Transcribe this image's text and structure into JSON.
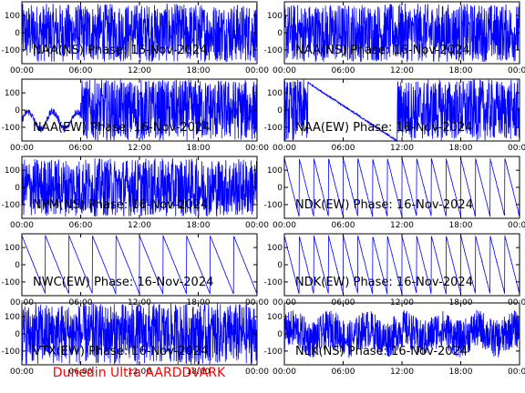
{
  "colors": {
    "trace": "#0000ff",
    "axes": "#000000",
    "footer": "#ff0000",
    "background": "#ffffff"
  },
  "footer": {
    "text": "Dunedin Ultra AARDDVARK"
  },
  "chart_data": [
    {
      "type": "line",
      "title": "NAA(NS) Phase: 16-Nov-2024",
      "x_ticks": [
        "00:00",
        "06:00",
        "12:00",
        "18:00",
        "00:00"
      ],
      "y_ticks": [
        "100",
        "0",
        "-100"
      ],
      "ylim": [
        -180,
        180
      ],
      "grid": false,
      "pattern": "dense_noise"
    },
    {
      "type": "line",
      "title": "NAA(NS) Phase: 16-Nov-2024",
      "x_ticks": [
        "00:00",
        "06:00",
        "12:00",
        "18:00",
        "00:00"
      ],
      "y_ticks": [
        "100",
        "0",
        "-100"
      ],
      "ylim": [
        -180,
        180
      ],
      "grid": false,
      "pattern": "dense_noise"
    },
    {
      "type": "line",
      "title": "NAA(EW) Phase: 16-Nov-2024",
      "x_ticks": [
        "00:00",
        "06:00",
        "12:00",
        "18:00",
        "00:00"
      ],
      "y_ticks": [
        "100",
        "0",
        "-100"
      ],
      "ylim": [
        -180,
        180
      ],
      "grid": false,
      "pattern": "wander_then_solid"
    },
    {
      "type": "line",
      "title": "NAA(EW) Phase: 16-Nov-2024",
      "x_ticks": [
        "00:00",
        "06:00",
        "12:00",
        "18:00",
        "00:00"
      ],
      "y_ticks": [
        "100",
        "0",
        "-100"
      ],
      "ylim": [
        -180,
        180
      ],
      "grid": false,
      "pattern": "solid_with_ramp"
    },
    {
      "type": "line",
      "title": "NPM(NS) Phase: 16-Nov-2024",
      "x_ticks": [
        "00:00",
        "06:00",
        "12:00",
        "18:00",
        "00:00"
      ],
      "y_ticks": [
        "100",
        "0",
        "-100"
      ],
      "ylim": [
        -180,
        180
      ],
      "grid": false,
      "pattern": "dense_noise"
    },
    {
      "type": "line",
      "title": "NDK(EW) Phase: 16-Nov-2024",
      "x_ticks": [
        "00:00",
        "06:00",
        "12:00",
        "18:00",
        "00:00"
      ],
      "y_ticks": [
        "100",
        "0",
        "-100"
      ],
      "ylim": [
        -180,
        180
      ],
      "grid": false,
      "pattern": "sawtooth_fast"
    },
    {
      "type": "line",
      "title": "NWC(EW) Phase: 16-Nov-2024",
      "x_ticks": [
        "00:00",
        "06:00",
        "12:00",
        "18:00",
        "00:00"
      ],
      "y_ticks": [
        "100",
        "0",
        "-100"
      ],
      "ylim": [
        -180,
        180
      ],
      "grid": false,
      "pattern": "sawtooth_slow"
    },
    {
      "type": "line",
      "title": "NDK(EW) Phase: 16-Nov-2024",
      "x_ticks": [
        "00:00",
        "06:00",
        "12:00",
        "18:00",
        "00:00"
      ],
      "y_ticks": [
        "100",
        "0",
        "-100"
      ],
      "ylim": [
        -180,
        180
      ],
      "grid": false,
      "pattern": "sawtooth_fast"
    },
    {
      "type": "line",
      "title": "VTX(EW) Phase: 16-Nov-2024",
      "x_ticks": [
        "00:00",
        "06:00",
        "12:00",
        "18:00",
        "00:00"
      ],
      "y_ticks": [
        "100",
        "0",
        "-100"
      ],
      "ylim": [
        -180,
        180
      ],
      "grid": false,
      "pattern": "solid_block"
    },
    {
      "type": "line",
      "title": "NLK(NS) Phase: 16-Nov-2024",
      "x_ticks": [
        "00:00",
        "06:00",
        "12:00",
        "18:00",
        "00:00"
      ],
      "y_ticks": [
        "100",
        "0",
        "-100"
      ],
      "ylim": [
        -180,
        180
      ],
      "grid": false,
      "pattern": "medium_noise"
    }
  ]
}
